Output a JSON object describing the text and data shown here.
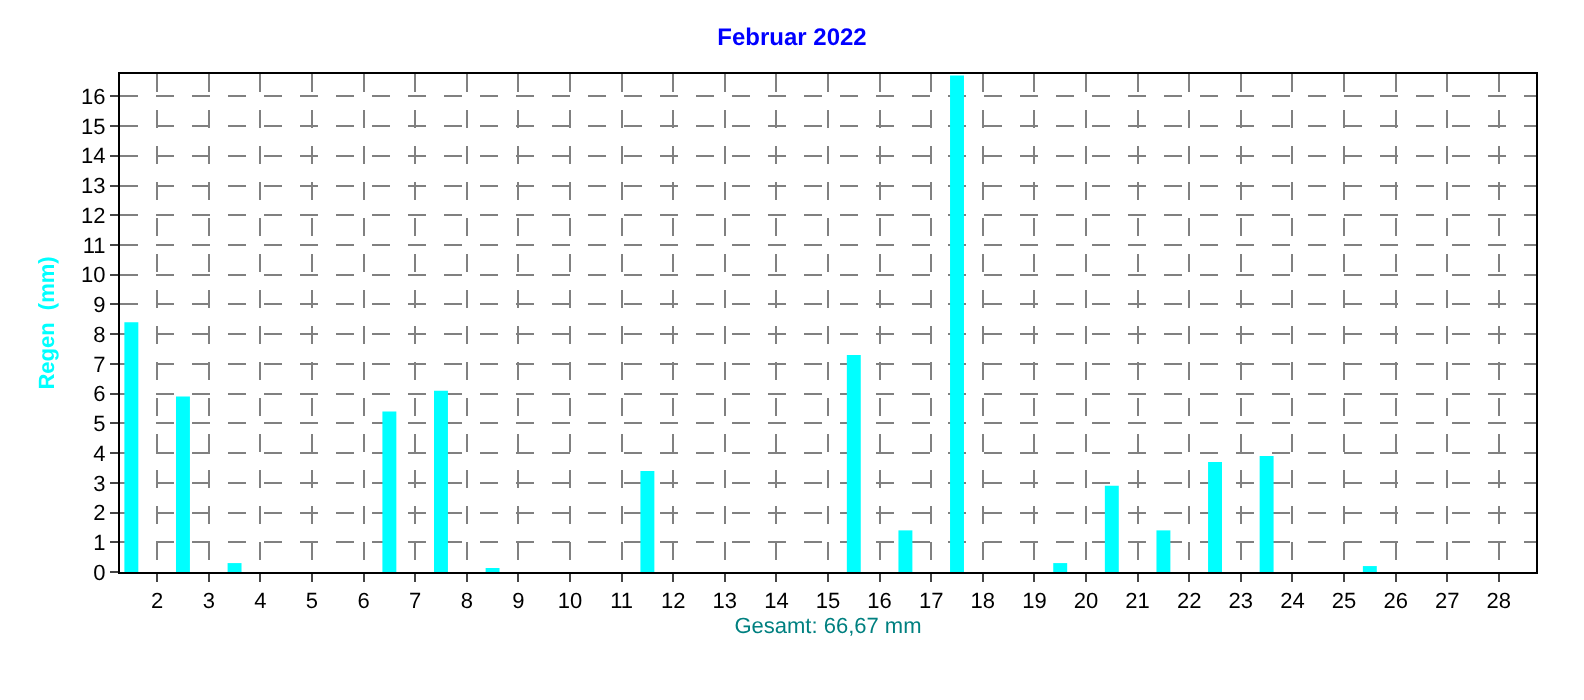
{
  "chart_data": {
    "type": "bar",
    "title": "Februar 2022",
    "xlabel": "Gesamt: 66,67 mm",
    "ylabel": "Regen  (mm)",
    "x": [
      1.5,
      2.5,
      3.5,
      4.5,
      5.5,
      6.5,
      7.5,
      8.5,
      9.5,
      10.5,
      11.5,
      12.5,
      13.5,
      14.5,
      15.5,
      16.5,
      17.5,
      18.5,
      19.5,
      20.5,
      21.5,
      22.5,
      23.5,
      24.5,
      25.5,
      26.5,
      27.5,
      28.5
    ],
    "values": [
      8.4,
      5.9,
      0.3,
      0,
      0,
      5.4,
      6.1,
      0.1,
      0,
      0,
      3.4,
      0,
      0,
      0,
      7.3,
      1.4,
      16.7,
      0,
      0.3,
      2.9,
      1.4,
      3.7,
      3.9,
      0,
      0.2,
      0,
      0,
      0
    ],
    "color": "#00ffff",
    "xlim": [
      1.28,
      28.72
    ],
    "xticks": [
      2,
      3,
      4,
      5,
      6,
      7,
      8,
      9,
      10,
      11,
      12,
      13,
      14,
      15,
      16,
      17,
      18,
      19,
      20,
      21,
      22,
      23,
      24,
      25,
      26,
      27,
      28
    ],
    "ylim": [
      0,
      16.75
    ],
    "yticks": [
      0,
      1,
      2,
      3,
      4,
      5,
      6,
      7,
      8,
      9,
      10,
      11,
      12,
      13,
      14,
      15,
      16
    ],
    "grid": true,
    "legend": false
  }
}
